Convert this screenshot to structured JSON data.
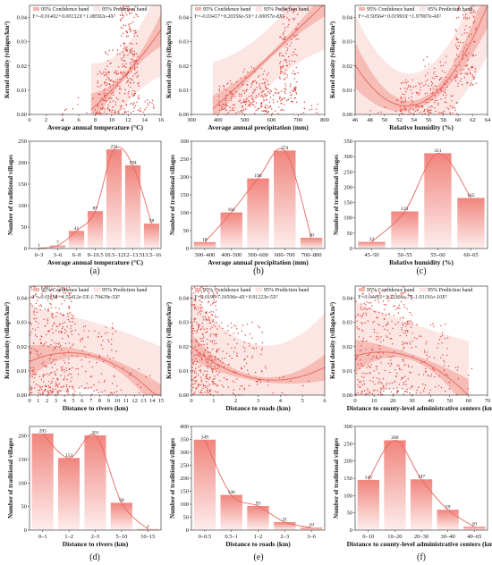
{
  "colors": {
    "accent": "#e8675f",
    "band": "#f4b4ae",
    "predband": "#fbe6e3",
    "bar_top": "#f0857d",
    "bar_bottom": "#fdeeed",
    "scatter": "#e0403a"
  },
  "chart_data": [
    {
      "id": "scatter-temperature",
      "type": "scatter",
      "panel": "a",
      "equation": "Y=-0.01402+0.00132X+1.08592e-4X²",
      "legend": [
        "95% Confidence band",
        "95% Prediction band"
      ],
      "xlabel": "Average annual temperature (°C)",
      "ylabel": "Kernel density (villages/km²)",
      "xlim": [
        0,
        16
      ],
      "ylim": [
        0,
        0.045
      ],
      "xticks": [
        0,
        2,
        4,
        6,
        8,
        10,
        12,
        14,
        16
      ],
      "yticks": [
        0.0,
        0.01,
        0.02,
        0.03,
        0.04
      ],
      "ytick_labels": [
        "0.00",
        "0.01",
        "0.02",
        "0.03",
        "0.04"
      ],
      "fit": {
        "a": -0.01402,
        "b": 0.00132,
        "c": 0.000108592
      },
      "fit_range": [
        7.5,
        16
      ],
      "ci_half": 0.0025,
      "pi_half": 0.012,
      "clusters": [
        {
          "x0": 8.2,
          "x1": 13.5,
          "ymin": 0.0,
          "ymax": 0.018,
          "n": 170
        },
        {
          "x0": 11.0,
          "x1": 13.2,
          "ymin": 0.017,
          "ymax": 0.045,
          "n": 130
        },
        {
          "x0": 9.2,
          "x1": 11.0,
          "ymin": 0.012,
          "ymax": 0.027,
          "n": 30
        },
        {
          "x0": 4.0,
          "x1": 8.5,
          "ymin": 0.0,
          "ymax": 0.007,
          "n": 12
        },
        {
          "x0": 13.5,
          "x1": 15.2,
          "ymin": 0.0,
          "ymax": 0.006,
          "n": 14
        }
      ]
    },
    {
      "id": "scatter-precipitation",
      "type": "scatter",
      "panel": "b",
      "equation": "Y=-0.03417+9.20356e-5X+1.00057e-8X²",
      "legend": [
        "95% Confidence band",
        "95% Prediction band"
      ],
      "xlabel": "Average annual precipitation (mm)",
      "ylabel": "Kernel density (villages/km²)",
      "xlim": [
        300,
        800
      ],
      "ylim": [
        0,
        0.045
      ],
      "xticks": [
        300,
        400,
        500,
        600,
        700,
        800
      ],
      "yticks": [
        0.0,
        0.01,
        0.02,
        0.03,
        0.04
      ],
      "ytick_labels": [
        "0.00",
        "0.01",
        "0.02",
        "0.03",
        "0.04"
      ],
      "fit": {
        "a": -0.03417,
        "b": 9.20356e-05,
        "c": 1.00057e-08
      },
      "fit_range": [
        380,
        800
      ],
      "ci_half": 0.002,
      "pi_half": 0.012,
      "clusters": [
        {
          "x0": 400,
          "x1": 600,
          "ymin": 0.0,
          "ymax": 0.014,
          "n": 140
        },
        {
          "x0": 480,
          "x1": 590,
          "ymin": 0.005,
          "ymax": 0.02,
          "n": 50
        },
        {
          "x0": 630,
          "x1": 700,
          "ymin": 0.005,
          "ymax": 0.045,
          "n": 150
        },
        {
          "x0": 560,
          "x1": 650,
          "ymin": 0.0,
          "ymax": 0.013,
          "n": 50
        },
        {
          "x0": 700,
          "x1": 780,
          "ymin": 0.0,
          "ymax": 0.006,
          "n": 12
        }
      ]
    },
    {
      "id": "scatter-humidity",
      "type": "scatter",
      "panel": "c",
      "equation": "Y=-0.50564+0.01993X+1.97907e-4X²",
      "legend": [
        "95% Confidence band",
        "95% Prediction band"
      ],
      "xlabel": "Relative humidity (%)",
      "ylabel": "Kernel density (villages/km²)",
      "xlim": [
        46,
        64
      ],
      "ylim": [
        0,
        0.045
      ],
      "xticks": [
        46,
        48,
        50,
        52,
        54,
        56,
        58,
        60,
        62,
        64
      ],
      "yticks": [
        0.0,
        0.01,
        0.02,
        0.03,
        0.04
      ],
      "ytick_labels": [
        "0.00",
        "0.01",
        "0.02",
        "0.03",
        "0.04"
      ],
      "fit": {
        "h": 53.0,
        "k": 0.0035,
        "c": 0.000345
      },
      "fit_range": [
        46,
        64
      ],
      "ci_half": 0.0035,
      "pi_half": 0.013,
      "clusters": [
        {
          "x0": 52,
          "x1": 60,
          "ymin": 0.0,
          "ymax": 0.015,
          "n": 170
        },
        {
          "x0": 59.5,
          "x1": 62.5,
          "ymin": 0.012,
          "ymax": 0.045,
          "n": 120
        },
        {
          "x0": 55,
          "x1": 58.5,
          "ymin": 0.008,
          "ymax": 0.024,
          "n": 30
        },
        {
          "x0": 48,
          "x1": 52,
          "ymin": 0.0,
          "ymax": 0.006,
          "n": 8
        }
      ]
    },
    {
      "id": "bar-temperature",
      "type": "bar",
      "panel": "a",
      "categories": [
        "0–3",
        "3–6",
        "6–9",
        "9–10.5",
        "10.5–12",
        "12–13.5",
        "13.5–16"
      ],
      "values": [
        1,
        7,
        41,
        87,
        231,
        194,
        58
      ],
      "value_labels": [
        "1",
        "7",
        "41",
        "87",
        "231",
        "194",
        "58"
      ],
      "xlabel": "Average annual temperature (°C)",
      "ylabel": "Number of traditional villages",
      "ylim": [
        0,
        250
      ],
      "yticks": [
        0,
        50,
        100,
        150,
        200,
        250
      ]
    },
    {
      "id": "bar-precipitation",
      "type": "bar",
      "panel": "b",
      "categories": [
        "300–400",
        "400–500",
        "500–600",
        "600–700",
        "700–800"
      ],
      "values": [
        18,
        101,
        196,
        274,
        30
      ],
      "value_labels": [
        "18",
        "101",
        "196",
        "274",
        "30"
      ],
      "xlabel": "Average annual precipitation (mm)",
      "ylabel": "Number of traditional villages",
      "ylim": [
        0,
        300
      ],
      "yticks": [
        0,
        50,
        100,
        150,
        200,
        250,
        300
      ]
    },
    {
      "id": "bar-humidity",
      "type": "bar",
      "panel": "c",
      "categories": [
        "45–50",
        "50–55",
        "55–60",
        "60–65"
      ],
      "values": [
        22,
        121,
        311,
        165
      ],
      "value_labels": [
        "22",
        "121",
        "311",
        "165"
      ],
      "xlabel": "Relative humidity (%)",
      "ylabel": "Number of traditional villages",
      "ylim": [
        0,
        350
      ],
      "yticks": [
        0,
        50,
        100,
        150,
        200,
        250,
        300,
        350
      ]
    },
    {
      "id": "scatter-rivers",
      "type": "scatter",
      "panel": "d",
      "equation": "Y=-0.01194+4.55412e-5X-1.70429e-5X²",
      "legend": [
        "95% Confidence band",
        "95% Prediction band"
      ],
      "xlabel": "Distance to rivers (km)",
      "ylabel": "Kernel density (villages/km²)",
      "xlim": [
        0,
        15
      ],
      "ylim": [
        0,
        0.045
      ],
      "xticks": [
        0,
        1,
        2,
        3,
        4,
        5,
        6,
        7,
        8,
        9,
        10,
        11,
        12,
        13,
        14,
        15
      ],
      "yticks": [
        0.0,
        0.01,
        0.02,
        0.03,
        0.04
      ],
      "ytick_labels": [
        "0.00",
        "0.01",
        "0.02",
        "0.03",
        "0.04"
      ],
      "fit": {
        "h": 4.5,
        "k": 0.0175,
        "c": -0.00018
      },
      "fit_range": [
        0,
        15
      ],
      "ci_half": 0.0025,
      "pi_half": 0.014,
      "clusters": [
        {
          "x0": 0,
          "x1": 5,
          "ymin": 0.0,
          "ymax": 0.045,
          "n": 350
        },
        {
          "x0": 5,
          "x1": 10,
          "ymin": 0.0,
          "ymax": 0.03,
          "n": 90
        },
        {
          "x0": 10,
          "x1": 14,
          "ymin": 0.0,
          "ymax": 0.012,
          "n": 10
        }
      ]
    },
    {
      "id": "scatter-roads",
      "type": "scatter",
      "panel": "e",
      "equation": "Y=0.0196-7.16506e-4X+9.91223e-5X²",
      "legend": [
        "95% Confidence band",
        "95% Prediction band"
      ],
      "xlabel": "Distance to roads (km)",
      "ylabel": "Kernel density (villages/km²)",
      "xlim": [
        0,
        6
      ],
      "ylim": [
        0,
        0.045
      ],
      "xticks": [
        0,
        1,
        2,
        3,
        4,
        5,
        6
      ],
      "yticks": [
        0.0,
        0.01,
        0.02,
        0.03,
        0.04
      ],
      "ytick_labels": [
        "0.00",
        "0.01",
        "0.02",
        "0.03",
        "0.04"
      ],
      "fit": {
        "h": 3.7,
        "k": 0.0062,
        "c": 0.001
      },
      "fit_range": [
        0,
        6
      ],
      "ci_half": 0.002,
      "pi_half": 0.014,
      "clusters": [
        {
          "x0": 0,
          "x1": 1.2,
          "ymin": 0.0,
          "ymax": 0.045,
          "n": 320
        },
        {
          "x0": 1.2,
          "x1": 3.2,
          "ymin": 0.0,
          "ymax": 0.03,
          "n": 110
        },
        {
          "x0": 3.2,
          "x1": 5.5,
          "ymin": 0.0,
          "ymax": 0.012,
          "n": 12
        }
      ]
    },
    {
      "id": "scatter-county",
      "type": "scatter",
      "panel": "f",
      "equation": "Y=0.04433+3.23326e-7X-1.03191e-10X²",
      "legend": [
        "95% Confidence band",
        "95% Prediction band"
      ],
      "xlabel": "Distance to county-level administrative centers (km)",
      "ylabel": "Kernel density (villages/km²)",
      "xlim": [
        0,
        70
      ],
      "ylim": [
        0,
        0.045
      ],
      "xticks": [
        0,
        10,
        20,
        30,
        40,
        50,
        60,
        70
      ],
      "yticks": [
        0.0,
        0.01,
        0.02,
        0.03,
        0.04
      ],
      "ytick_labels": [
        "0.00",
        "0.01",
        "0.02",
        "0.03",
        "0.04"
      ],
      "fit": {
        "h": 14,
        "k": 0.0178,
        "c": -8.5e-06
      },
      "fit_range": [
        0,
        60
      ],
      "ci_half": 0.0025,
      "pi_half": 0.014,
      "clusters": [
        {
          "x0": 0,
          "x1": 30,
          "ymin": 0.0,
          "ymax": 0.045,
          "n": 340
        },
        {
          "x0": 30,
          "x1": 50,
          "ymin": 0.0,
          "ymax": 0.03,
          "n": 80
        },
        {
          "x0": 50,
          "x1": 62,
          "ymin": 0.0,
          "ymax": 0.012,
          "n": 8
        }
      ]
    },
    {
      "id": "bar-rivers",
      "type": "bar",
      "panel": "d",
      "categories": [
        "0–1",
        "1–2",
        "2–5",
        "5–10",
        "10–15"
      ],
      "values": [
        205,
        153,
        201,
        58,
        2
      ],
      "value_labels": [
        "205",
        "153",
        "201",
        "58",
        "2"
      ],
      "xlabel": "Distance to rivers (km)",
      "ylabel": "Number of traditional villages",
      "ylim": [
        0,
        220
      ],
      "yticks": [
        0,
        50,
        100,
        150,
        200
      ]
    },
    {
      "id": "bar-roads",
      "type": "bar",
      "panel": "e",
      "categories": [
        "0–0.5",
        "0.5–1",
        "1–2",
        "2–3",
        "3–6"
      ],
      "values": [
        349,
        136,
        93,
        31,
        10
      ],
      "value_labels": [
        "349",
        "136",
        "93",
        "31",
        "10"
      ],
      "xlabel": "Distance to roads (km)",
      "ylabel": "Number of traditional villages",
      "ylim": [
        0,
        400
      ],
      "yticks": [
        0,
        50,
        100,
        150,
        200,
        250,
        300,
        350,
        400
      ]
    },
    {
      "id": "bar-county",
      "type": "bar",
      "panel": "f",
      "categories": [
        "0–10",
        "10–20",
        "20–30",
        "30–40",
        "40–65"
      ],
      "values": [
        145,
        260,
        147,
        59,
        10
      ],
      "value_labels": [
        "145",
        "260",
        "147",
        "59",
        "10"
      ],
      "xlabel": "Distance to county-level administrative centers (km)",
      "ylabel": "Number of traditional villages",
      "ylim": [
        0,
        300
      ],
      "yticks": [
        0,
        50,
        100,
        150,
        200,
        250,
        300
      ]
    }
  ],
  "panel_labels": [
    "(a)",
    "(b)",
    "(c)",
    "(d)",
    "(e)",
    "(f)"
  ]
}
